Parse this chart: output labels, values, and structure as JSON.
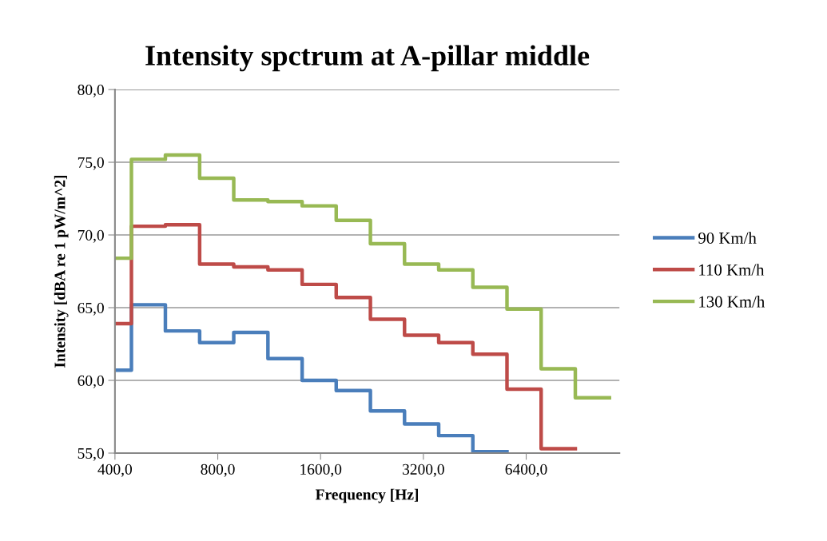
{
  "chart_data": {
    "type": "step",
    "title": "Intensity spctrum at A-pillar middle",
    "xlabel": "Frequency [Hz]",
    "ylabel": "Intensity [dBA re 1 pW/m^2]",
    "x": [
      400,
      447,
      562,
      708,
      891,
      1122,
      1413,
      1778,
      2239,
      2818,
      3548,
      4467,
      5623,
      7079,
      8913,
      11220
    ],
    "series": [
      {
        "name": "90 Km/h",
        "color": "#4a7ebb",
        "x": [
          400,
          447,
          562,
          708,
          891,
          1122,
          1413,
          1778,
          2239,
          2818,
          3548,
          4467,
          5623
        ],
        "values": [
          60.7,
          65.2,
          63.4,
          62.6,
          63.3,
          61.5,
          60.0,
          59.3,
          57.9,
          57.0,
          56.2,
          55.1,
          55.1
        ]
      },
      {
        "name": "110 Km/h",
        "color": "#be4b48",
        "x": [
          400,
          447,
          562,
          708,
          891,
          1122,
          1413,
          1778,
          2239,
          2818,
          3548,
          4467,
          5623,
          7079,
          8913
        ],
        "values": [
          63.9,
          70.6,
          70.7,
          68.0,
          67.8,
          67.6,
          66.6,
          65.7,
          64.2,
          63.1,
          62.6,
          61.8,
          59.4,
          55.3,
          55.3
        ]
      },
      {
        "name": "130 Km/h",
        "color": "#98b954",
        "values": [
          68.4,
          75.2,
          75.5,
          73.9,
          72.4,
          72.3,
          72.0,
          71.0,
          69.4,
          68.0,
          67.6,
          66.4,
          64.9,
          60.8,
          58.8,
          58.8
        ]
      }
    ],
    "log": "x",
    "xlim": [
      400,
      12000
    ],
    "xticks": [
      {
        "value": 400,
        "label": "400,0"
      },
      {
        "value": 800,
        "label": "800,0"
      },
      {
        "value": 1600,
        "label": "1600,0"
      },
      {
        "value": 3200,
        "label": "3200,0"
      },
      {
        "value": 6400,
        "label": "6400,0"
      }
    ],
    "ylim": [
      55,
      80
    ],
    "yticks": [
      {
        "value": 55,
        "label": "55,0"
      },
      {
        "value": 60,
        "label": "60,0"
      },
      {
        "value": 65,
        "label": "65,0"
      },
      {
        "value": 70,
        "label": "70,0"
      },
      {
        "value": 75,
        "label": "75,0"
      },
      {
        "value": 80,
        "label": "80,0"
      }
    ],
    "grid": "y",
    "legend": "right",
    "line_style": "solid"
  }
}
